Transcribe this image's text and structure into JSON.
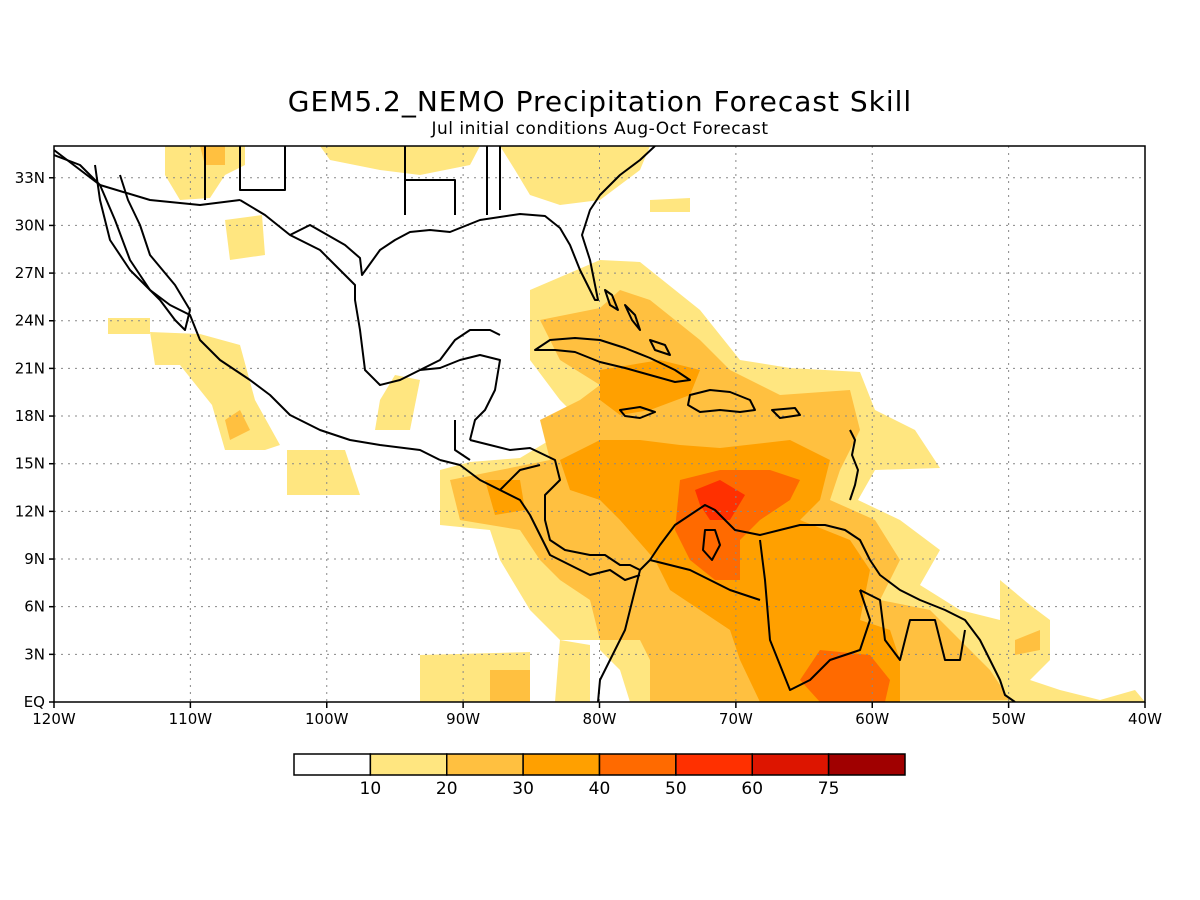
{
  "title": "GEM5.2_NEMO Precipitation Forecast Skill",
  "subtitle": "Jul initial conditions  Aug-Oct Forecast",
  "map": {
    "lon_range": [
      -120,
      -40
    ],
    "lat_range": [
      0,
      35
    ],
    "lon_ticks": [
      {
        "value": -120,
        "label": "120W"
      },
      {
        "value": -110,
        "label": "110W"
      },
      {
        "value": -100,
        "label": "100W"
      },
      {
        "value": -90,
        "label": "90W"
      },
      {
        "value": -80,
        "label": "80W"
      },
      {
        "value": -70,
        "label": "70W"
      },
      {
        "value": -60,
        "label": "60W"
      },
      {
        "value": -50,
        "label": "50W"
      },
      {
        "value": -40,
        "label": "40W"
      }
    ],
    "lat_ticks": [
      {
        "value": 0,
        "label": "EQ"
      },
      {
        "value": 3,
        "label": "3N"
      },
      {
        "value": 6,
        "label": "6N"
      },
      {
        "value": 9,
        "label": "9N"
      },
      {
        "value": 12,
        "label": "12N"
      },
      {
        "value": 15,
        "label": "15N"
      },
      {
        "value": 18,
        "label": "18N"
      },
      {
        "value": 21,
        "label": "21N"
      },
      {
        "value": 24,
        "label": "24N"
      },
      {
        "value": 27,
        "label": "27N"
      },
      {
        "value": 30,
        "label": "30N"
      },
      {
        "value": 33,
        "label": "33N"
      }
    ],
    "grid": true,
    "grid_style": "dotted"
  },
  "legend": {
    "labels": [
      "10",
      "20",
      "30",
      "40",
      "50",
      "60",
      "75"
    ],
    "colors": [
      "#ffffff",
      "#ffe680",
      "#ffc040",
      "#ffa000",
      "#ff6a00",
      "#ff3000",
      "#dd1500",
      "#a00000"
    ]
  },
  "colors": {
    "coast": "#000000",
    "land_bg": "#ffffff",
    "grid": "#888888"
  }
}
